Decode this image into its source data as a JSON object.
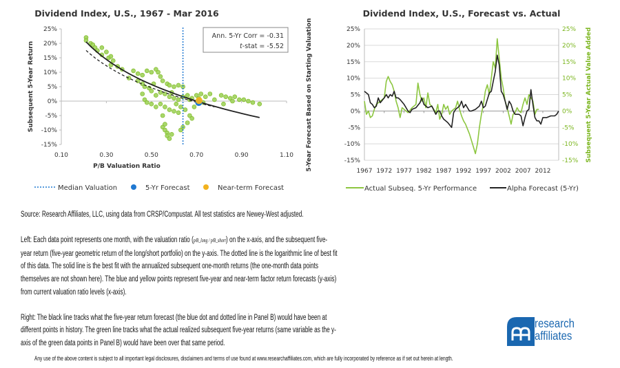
{
  "colors": {
    "scatter": "#9ed35a",
    "scatter_stroke": "#7ab51d",
    "median": "#1f78d1",
    "forecast_5yr": "#1f78d1",
    "near_term": "#f2b21e",
    "fit": "#222222",
    "actual": "#8cc63f",
    "alpha": "#222222",
    "brand": "#1a67b0"
  },
  "chart_data": [
    {
      "type": "scatter",
      "title": "Dividend Index, U.S., 1967 - Mar 2016",
      "xlabel": "P/B Valuation Ratio",
      "ylabel": "Subsequent 5-Year Return",
      "xlim": [
        0.1,
        1.1
      ],
      "ylim": [
        -15,
        25
      ],
      "xticks": [
        "0.10",
        "0.30",
        "0.50",
        "0.70",
        "0.90",
        "1.10"
      ],
      "yticks": [
        "25%",
        "20%",
        "15%",
        "10%",
        "5%",
        "0%",
        "-5%",
        "-10%",
        "-15%"
      ],
      "annotation": {
        "corr": "Ann. 5-Yr Corr = -0.31",
        "tstat_label": "t",
        "tstat_rest": "-stat = -5.52"
      },
      "median_valuation": 0.64,
      "forecast_5yr": {
        "x": 0.71,
        "y": -0.5
      },
      "near_term_forecast": {
        "x": 0.71,
        "y": 0.2
      },
      "fit_solid": {
        "a": -6.04,
        "b": -17.0,
        "x_range": [
          0.21,
          0.98
        ]
      },
      "fit_dotted": {
        "a": -5.7,
        "b": -14.9,
        "x_range": [
          0.21,
          0.78
        ]
      },
      "points": [
        [
          0.21,
          22
        ],
        [
          0.21,
          21
        ],
        [
          0.23,
          20
        ],
        [
          0.24,
          19.5
        ],
        [
          0.25,
          18.5
        ],
        [
          0.26,
          17.5
        ],
        [
          0.28,
          18.5
        ],
        [
          0.28,
          16
        ],
        [
          0.3,
          17
        ],
        [
          0.31,
          15
        ],
        [
          0.32,
          15.5
        ],
        [
          0.33,
          14
        ],
        [
          0.32,
          12.5
        ],
        [
          0.35,
          12
        ],
        [
          0.37,
          11
        ],
        [
          0.42,
          10.5
        ],
        [
          0.44,
          9.5
        ],
        [
          0.46,
          9
        ],
        [
          0.48,
          10.5
        ],
        [
          0.5,
          10
        ],
        [
          0.52,
          11
        ],
        [
          0.53,
          10
        ],
        [
          0.54,
          8.5
        ],
        [
          0.55,
          7
        ],
        [
          0.57,
          6
        ],
        [
          0.58,
          5.5
        ],
        [
          0.6,
          5
        ],
        [
          0.62,
          5.5
        ],
        [
          0.64,
          5
        ],
        [
          0.46,
          6
        ],
        [
          0.47,
          5
        ],
        [
          0.49,
          4.5
        ],
        [
          0.5,
          3.5
        ],
        [
          0.52,
          2
        ],
        [
          0.54,
          3
        ],
        [
          0.56,
          2.5
        ],
        [
          0.58,
          1.5
        ],
        [
          0.6,
          1
        ],
        [
          0.62,
          0.5
        ],
        [
          0.64,
          1.5
        ],
        [
          0.66,
          2
        ],
        [
          0.68,
          1
        ],
        [
          0.7,
          2
        ],
        [
          0.72,
          2.5
        ],
        [
          0.74,
          1.5
        ],
        [
          0.76,
          2.5
        ],
        [
          0.78,
          0.5
        ],
        [
          0.81,
          2
        ],
        [
          0.83,
          1.5
        ],
        [
          0.85,
          1
        ],
        [
          0.87,
          1.5
        ],
        [
          0.89,
          0.5
        ],
        [
          0.91,
          0.5
        ],
        [
          0.93,
          0
        ],
        [
          0.95,
          -0.5
        ],
        [
          0.98,
          -1
        ],
        [
          0.82,
          -1
        ],
        [
          0.86,
          0
        ],
        [
          0.47,
          0.5
        ],
        [
          0.48,
          -0.5
        ],
        [
          0.5,
          -1
        ],
        [
          0.52,
          -2
        ],
        [
          0.54,
          -1
        ],
        [
          0.56,
          -2
        ],
        [
          0.58,
          -3
        ],
        [
          0.6,
          -3.5
        ],
        [
          0.62,
          -4
        ],
        [
          0.63,
          -2
        ],
        [
          0.65,
          -3
        ],
        [
          0.67,
          -5
        ],
        [
          0.68,
          -6
        ],
        [
          0.66,
          -7.5
        ],
        [
          0.64,
          -9
        ],
        [
          0.63,
          -10
        ],
        [
          0.55,
          -5
        ],
        [
          0.55,
          -9
        ],
        [
          0.56,
          -8
        ],
        [
          0.56,
          -10
        ],
        [
          0.57,
          -11
        ],
        [
          0.57,
          -12
        ],
        [
          0.58,
          -13
        ],
        [
          0.59,
          -11.5
        ],
        [
          0.46,
          2.5
        ],
        [
          0.69,
          -2
        ],
        [
          0.71,
          1
        ],
        [
          0.73,
          -0.5
        ],
        [
          0.4,
          8
        ],
        [
          0.44,
          7
        ],
        [
          0.51,
          6
        ],
        [
          0.59,
          3
        ],
        [
          0.61,
          -1
        ],
        [
          0.67,
          0.5
        ]
      ],
      "legend": {
        "placement": "bottom",
        "items": [
          "Median Valuation",
          "5-Yr Forecast",
          "Near-term Forecast"
        ]
      }
    },
    {
      "type": "line",
      "title": "Dividend Index, U.S., Forecast vs. Actual",
      "ylabel": "5-Year Forecast Based on Starting Valuation",
      "y2label": "Subsequent 5-Year Actual Value Added",
      "xlim": [
        1967,
        2016
      ],
      "ylim": [
        -15,
        25
      ],
      "xticks": [
        "1967",
        "1972",
        "1977",
        "1982",
        "1987",
        "1992",
        "1997",
        "2002",
        "2007",
        "2012"
      ],
      "yticks": [
        "25%",
        "20%",
        "15%",
        "10%",
        "5%",
        "0%",
        "-5%",
        "-10%",
        "-15%"
      ],
      "grid": true,
      "legend": {
        "placement": "bottom",
        "items": [
          "Actual Subseq. 5-Yr Performance",
          "Alpha Forecast (5-Yr)"
        ]
      },
      "series": [
        {
          "name": "Actual Subseq. 5-Yr Performance",
          "axis": "right",
          "points": [
            [
              1967,
              3
            ],
            [
              1967.5,
              -1
            ],
            [
              1968,
              0
            ],
            [
              1968.5,
              -2
            ],
            [
              1969,
              -1.5
            ],
            [
              1969.5,
              0.5
            ],
            [
              1970,
              2
            ],
            [
              1971,
              3
            ],
            [
              1972,
              4
            ],
            [
              1972.5,
              9
            ],
            [
              1973,
              10.5
            ],
            [
              1973.5,
              9
            ],
            [
              1974,
              8
            ],
            [
              1974.5,
              6
            ],
            [
              1975,
              3
            ],
            [
              1975.5,
              1
            ],
            [
              1976,
              -2
            ],
            [
              1976.5,
              1
            ],
            [
              1977,
              0.5
            ],
            [
              1978,
              -0.5
            ],
            [
              1979,
              1
            ],
            [
              1980,
              2
            ],
            [
              1980.5,
              8.5
            ],
            [
              1981,
              5
            ],
            [
              1981.5,
              3
            ],
            [
              1982,
              4
            ],
            [
              1982.5,
              1
            ],
            [
              1983,
              5.5
            ],
            [
              1983.5,
              2
            ],
            [
              1984,
              1.5
            ],
            [
              1985,
              -0.5
            ],
            [
              1985.5,
              2
            ],
            [
              1986,
              -2.5
            ],
            [
              1986.5,
              -1
            ],
            [
              1987,
              2
            ],
            [
              1987.5,
              0.5
            ],
            [
              1988,
              1.5
            ],
            [
              1988.5,
              -1
            ],
            [
              1989,
              0
            ],
            [
              1990,
              1
            ],
            [
              1990.5,
              3
            ],
            [
              1991,
              0.5
            ],
            [
              1991.5,
              -1.5
            ],
            [
              1992,
              -3
            ],
            [
              1992.5,
              -4
            ],
            [
              1993,
              -5.5
            ],
            [
              1993.5,
              -7
            ],
            [
              1994,
              -9
            ],
            [
              1994.5,
              -11
            ],
            [
              1995,
              -13
            ],
            [
              1995.5,
              -10
            ],
            [
              1996,
              -5
            ],
            [
              1996.5,
              -1
            ],
            [
              1997,
              2
            ],
            [
              1997.5,
              6
            ],
            [
              1998,
              8
            ],
            [
              1998.5,
              5
            ],
            [
              1999,
              10
            ],
            [
              1999.5,
              15
            ],
            [
              2000,
              13
            ],
            [
              2000.5,
              22
            ],
            [
              2001,
              16
            ],
            [
              2001.5,
              10
            ],
            [
              2002,
              7
            ],
            [
              2002.5,
              3
            ],
            [
              2003,
              1
            ],
            [
              2003.5,
              -1.5
            ],
            [
              2004,
              -4
            ],
            [
              2004.5,
              -1
            ],
            [
              2005,
              -0.5
            ],
            [
              2005.5,
              1
            ],
            [
              2006,
              0
            ],
            [
              2006.5,
              -0.5
            ],
            [
              2007,
              2
            ],
            [
              2007.5,
              4
            ],
            [
              2008,
              2
            ],
            [
              2008.5,
              5
            ],
            [
              2009,
              4
            ],
            [
              2009.5,
              3
            ],
            [
              2010,
              -1
            ],
            [
              2010.5,
              0.5
            ],
            [
              2011,
              0.5
            ]
          ]
        },
        {
          "name": "Alpha Forecast (5-Yr)",
          "axis": "left",
          "points": [
            [
              1967,
              6
            ],
            [
              1967.5,
              5.5
            ],
            [
              1968,
              5
            ],
            [
              1968.5,
              2.5
            ],
            [
              1969,
              2
            ],
            [
              1969.5,
              1
            ],
            [
              1970,
              1.5
            ],
            [
              1970.5,
              4
            ],
            [
              1971,
              2.5
            ],
            [
              1972,
              4
            ],
            [
              1972.5,
              5
            ],
            [
              1973,
              4
            ],
            [
              1973.5,
              5
            ],
            [
              1974,
              4.5
            ],
            [
              1974.5,
              6
            ],
            [
              1975,
              4
            ],
            [
              1975.5,
              4
            ],
            [
              1976,
              3.5
            ],
            [
              1977,
              2
            ],
            [
              1978,
              0
            ],
            [
              1978.5,
              -0.5
            ],
            [
              1979,
              0.5
            ],
            [
              1980,
              1
            ],
            [
              1981,
              2.5
            ],
            [
              1981.5,
              4
            ],
            [
              1982,
              2
            ],
            [
              1983,
              1
            ],
            [
              1984,
              1.5
            ],
            [
              1985,
              -1
            ],
            [
              1985.5,
              0
            ],
            [
              1986,
              0
            ],
            [
              1986.5,
              -1.5
            ],
            [
              1987,
              -2.5
            ],
            [
              1988,
              -3.5
            ],
            [
              1989,
              -5
            ],
            [
              1989.5,
              -0.5
            ],
            [
              1990,
              0.5
            ],
            [
              1991,
              1.5
            ],
            [
              1991.5,
              3
            ],
            [
              1992,
              1
            ],
            [
              1992.5,
              2
            ],
            [
              1993,
              1
            ],
            [
              1993.5,
              0
            ],
            [
              1994,
              0
            ],
            [
              1995,
              0.5
            ],
            [
              1996,
              1.5
            ],
            [
              1996.5,
              3
            ],
            [
              1997,
              1
            ],
            [
              1997.5,
              1.5
            ],
            [
              1998,
              3.5
            ],
            [
              1998.5,
              5.5
            ],
            [
              1999,
              6
            ],
            [
              1999.5,
              9
            ],
            [
              2000,
              12
            ],
            [
              2000.5,
              17
            ],
            [
              2001,
              14
            ],
            [
              2001.5,
              6
            ],
            [
              2002,
              5
            ],
            [
              2002.5,
              3
            ],
            [
              2003,
              0.5
            ],
            [
              2003.5,
              3
            ],
            [
              2004,
              2
            ],
            [
              2004.5,
              0
            ],
            [
              2005,
              -1
            ],
            [
              2006,
              -1
            ],
            [
              2006.5,
              -1.5
            ],
            [
              2007,
              -4.5
            ],
            [
              2007.5,
              -2
            ],
            [
              2008,
              0
            ],
            [
              2008.5,
              0.5
            ],
            [
              2009,
              6.5
            ],
            [
              2009.5,
              2
            ],
            [
              2010,
              -2
            ],
            [
              2010.5,
              -3
            ],
            [
              2011,
              -3
            ],
            [
              2011.5,
              -4
            ],
            [
              2012,
              -2
            ],
            [
              2013,
              -2
            ],
            [
              2014,
              -1.5
            ],
            [
              2015,
              -1.5
            ],
            [
              2015.5,
              -1
            ],
            [
              2016,
              0
            ]
          ]
        }
      ]
    }
  ],
  "notes": {
    "source": "Source: Research Affiliates, LLC, using data from CRSP/Compustat. All test statistics are Newey-West adjusted.",
    "left_a": "Left: Each data point represents one month, with the valuation ratio (",
    "formula": "p⁄B_long / p⁄B_short",
    "left_b": ") on the x-axis, and the subsequent five-year return (five-year geometric return of the long/short portfolio) on the y-axis. The dotted line is the logarithmic line of best fit of this data. The solid line is the best fit with the annualized subsequent one-month returns (the one-month data points themselves are not shown here). The blue and yellow points represent five-year and near-term factor return forecasts (y-axis) from current valuation ratio levels (x-axis).",
    "right": "Right: The black line tracks what the five-year return forecast (the blue dot and dotted line in Panel B) would have been at different points in history. The green line tracks what the actual realized subsequent five-year returns (same variable as the y-axis of the green data points in Panel B) would have been over that same period."
  },
  "logo": {
    "line1": "research",
    "line2": "affiliates"
  },
  "footer": "Any use of the above content is subject to all important legal disclosures, disclaimers and terms of use found at www.researchaffiliates.com, which are fully incorporated by reference as if set out herein at length."
}
